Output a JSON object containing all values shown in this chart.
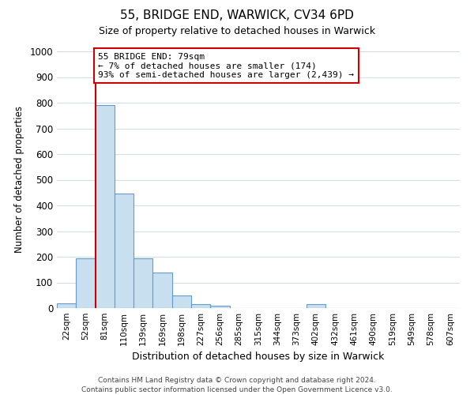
{
  "title": "55, BRIDGE END, WARWICK, CV34 6PD",
  "subtitle": "Size of property relative to detached houses in Warwick",
  "xlabel": "Distribution of detached houses by size in Warwick",
  "ylabel": "Number of detached properties",
  "bar_color": "#c8dff0",
  "bar_edge_color": "#6699cc",
  "annotation_box_color": "#ffffff",
  "annotation_box_edge": "#cc0000",
  "marker_line_color": "#cc0000",
  "annotation_line1": "55 BRIDGE END: 79sqm",
  "annotation_line2": "← 7% of detached houses are smaller (174)",
  "annotation_line3": "93% of semi-detached houses are larger (2,439) →",
  "footer_line1": "Contains HM Land Registry data © Crown copyright and database right 2024.",
  "footer_line2": "Contains public sector information licensed under the Open Government Licence v3.0.",
  "bin_labels": [
    "22sqm",
    "52sqm",
    "81sqm",
    "110sqm",
    "139sqm",
    "169sqm",
    "198sqm",
    "227sqm",
    "256sqm",
    "285sqm",
    "315sqm",
    "344sqm",
    "373sqm",
    "402sqm",
    "432sqm",
    "461sqm",
    "490sqm",
    "519sqm",
    "549sqm",
    "578sqm",
    "607sqm"
  ],
  "bar_heights": [
    20,
    195,
    790,
    445,
    195,
    140,
    50,
    15,
    10,
    0,
    0,
    0,
    0,
    15,
    0,
    0,
    0,
    0,
    0,
    0,
    0
  ],
  "ylim": [
    0,
    1000
  ],
  "yticks": [
    0,
    100,
    200,
    300,
    400,
    500,
    600,
    700,
    800,
    900,
    1000
  ],
  "grid_color": "#d0dde8",
  "figwidth": 6.0,
  "figheight": 5.0,
  "dpi": 100
}
